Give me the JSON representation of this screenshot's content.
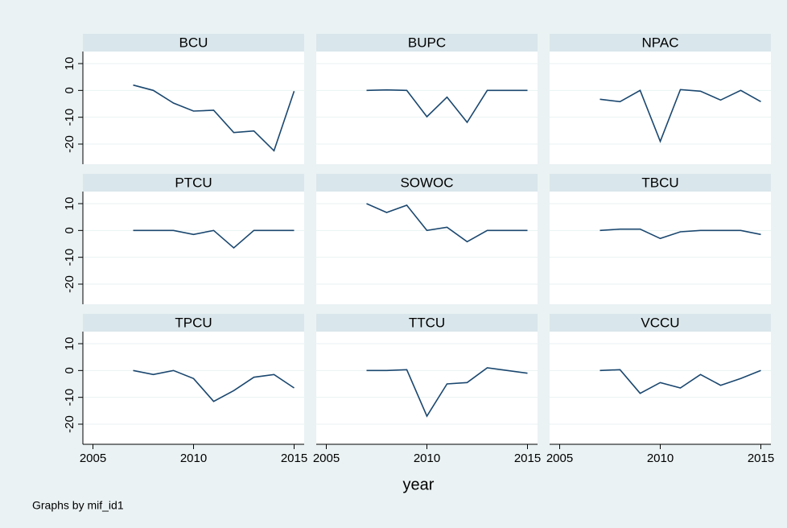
{
  "chart_data": {
    "type": "line",
    "color": "#1a476f",
    "grid": true,
    "x_label": "year",
    "note": "Graphs by mif_id1",
    "x": [
      2007,
      2008,
      2009,
      2010,
      2011,
      2012,
      2013,
      2014,
      2015
    ],
    "xlim": [
      2004.5,
      2015.5
    ],
    "xticks": [
      2005,
      2010,
      2015
    ],
    "ylim": [
      -27.5,
      14.5
    ],
    "yticks": [
      10,
      0,
      -10,
      -20
    ],
    "panels": [
      {
        "title": "BCU",
        "values": [
          2,
          0,
          -4.7,
          -7.7,
          -7.4,
          -15.7,
          -15.1,
          -22.5,
          -0.3
        ]
      },
      {
        "title": "BUPC",
        "values": [
          0,
          0.2,
          0,
          -9.8,
          -2.5,
          -11.9,
          0,
          0,
          0
        ]
      },
      {
        "title": "NPAC",
        "values": [
          -3.3,
          -4.2,
          0,
          -19,
          0.3,
          -0.3,
          -3.6,
          0,
          -4.2
        ]
      },
      {
        "title": "PTCU",
        "values": [
          0,
          0,
          0,
          -1.5,
          0,
          -6.5,
          0,
          0,
          0
        ]
      },
      {
        "title": "SOWOC",
        "values": [
          10,
          6.7,
          9.4,
          0,
          1.2,
          -4.2,
          0,
          0,
          0
        ]
      },
      {
        "title": "TBCU",
        "values": [
          0,
          0.5,
          0.5,
          -3,
          -0.5,
          0,
          0,
          0,
          -1.5
        ]
      },
      {
        "title": "TPCU",
        "values": [
          0,
          -1.5,
          0,
          -3,
          -11.5,
          -7.5,
          -2.5,
          -1.5,
          -6.5
        ]
      },
      {
        "title": "TTCU",
        "values": [
          0,
          0,
          0.3,
          -17,
          -5,
          -4.5,
          1,
          0,
          -1
        ]
      },
      {
        "title": "VCCU",
        "values": [
          0,
          0.3,
          -8.5,
          -4.5,
          -6.5,
          -1.5,
          -5.5,
          -3,
          0
        ]
      }
    ]
  }
}
